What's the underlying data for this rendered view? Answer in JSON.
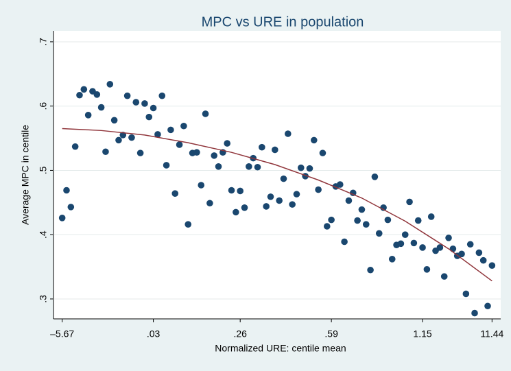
{
  "chart_data": {
    "type": "scatter",
    "title": "MPC vs URE in population",
    "x_label": "Normalized URE: centile mean",
    "y_label": "Average MPC in centile",
    "xlim": [
      -1,
      102
    ],
    "ylim": [
      0.269,
      0.717
    ],
    "xticks": [
      {
        "value": 1,
        "label": "–5.67"
      },
      {
        "value": 22,
        "label": ".03"
      },
      {
        "value": 42,
        "label": ".26"
      },
      {
        "value": 63,
        "label": ".59"
      },
      {
        "value": 84,
        "label": "1.15"
      },
      {
        "value": 100,
        "label": "11.44"
      }
    ],
    "yticks": [
      {
        "value": 0.3,
        "label": ".3"
      },
      {
        "value": 0.4,
        "label": ".4"
      },
      {
        "value": 0.5,
        "label": ".5"
      },
      {
        "value": 0.6,
        "label": ".6"
      },
      {
        "value": 0.7,
        "label": ".7"
      }
    ],
    "grid": true,
    "x": [
      1,
      2,
      3,
      4,
      5,
      6,
      7,
      8,
      9,
      10,
      11,
      12,
      13,
      14,
      15,
      16,
      17,
      18,
      19,
      20,
      21,
      22,
      23,
      24,
      25,
      26,
      27,
      28,
      29,
      30,
      31,
      32,
      33,
      34,
      35,
      36,
      37,
      38,
      39,
      40,
      41,
      42,
      43,
      44,
      45,
      46,
      47,
      48,
      49,
      50,
      51,
      52,
      53,
      54,
      55,
      56,
      57,
      58,
      59,
      60,
      61,
      62,
      63,
      64,
      65,
      66,
      67,
      68,
      69,
      70,
      71,
      72,
      73,
      74,
      75,
      76,
      77,
      78,
      79,
      80,
      81,
      82,
      83,
      84,
      85,
      86,
      87,
      88,
      89,
      90,
      91,
      92,
      93,
      94,
      95,
      96,
      97,
      98,
      99,
      100
    ],
    "series": [
      {
        "color": "#1a476f",
        "values": [
          0.426,
          0.469,
          0.443,
          0.537,
          0.617,
          0.626,
          0.586,
          0.623,
          0.618,
          0.598,
          0.529,
          0.634,
          0.578,
          0.547,
          0.555,
          0.616,
          0.551,
          0.606,
          0.527,
          0.604,
          0.583,
          0.597,
          0.556,
          0.616,
          0.508,
          0.563,
          0.464,
          0.54,
          0.569,
          0.416,
          0.527,
          0.528,
          0.477,
          0.588,
          0.449,
          0.523,
          0.506,
          0.528,
          0.542,
          0.469,
          0.435,
          0.468,
          0.442,
          0.506,
          0.519,
          0.505,
          0.536,
          0.444,
          0.459,
          0.532,
          0.453,
          0.487,
          0.557,
          0.447,
          0.463,
          0.504,
          0.491,
          0.503,
          0.547,
          0.47,
          0.527,
          0.413,
          0.423,
          0.475,
          0.478,
          0.389,
          0.453,
          0.465,
          0.422,
          0.439,
          0.416,
          0.345,
          0.49,
          0.402,
          0.442,
          0.423,
          0.362,
          0.384,
          0.386,
          0.4,
          0.451,
          0.387,
          0.422,
          0.38,
          0.346,
          0.428,
          0.375,
          0.38,
          0.335,
          0.395,
          0.378,
          0.367,
          0.37,
          0.308,
          0.385,
          0.278,
          0.372,
          0.36,
          0.289,
          0.352
        ]
      }
    ],
    "fit_line": {
      "color": "#90353b",
      "x": [
        1,
        10,
        20,
        30,
        40,
        50,
        60,
        70,
        80,
        90,
        100
      ],
      "values": [
        0.565,
        0.562,
        0.555,
        0.543,
        0.528,
        0.509,
        0.485,
        0.457,
        0.421,
        0.378,
        0.328
      ]
    }
  }
}
